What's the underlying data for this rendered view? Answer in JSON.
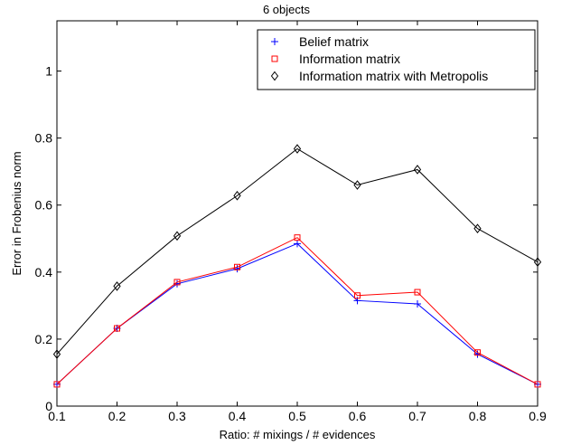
{
  "chart_data": {
    "type": "line",
    "title": "6 objects",
    "xlabel": "Ratio: # mixings / # evidences",
    "ylabel": "Error in Frobenius norm",
    "xlim": [
      0.1,
      0.9
    ],
    "ylim": [
      0,
      1.15
    ],
    "xticks": [
      0.1,
      0.2,
      0.3,
      0.4,
      0.5,
      0.6,
      0.7,
      0.8,
      0.9
    ],
    "xtick_labels": [
      "0.1",
      "0.2",
      "0.3",
      "0.4",
      "0.5",
      "0.6",
      "0.7",
      "0.8",
      "0.9"
    ],
    "yticks": [
      0,
      0.2,
      0.4,
      0.6,
      0.8,
      1
    ],
    "ytick_labels": [
      "0",
      "0.2",
      "0.4",
      "0.6",
      "0.8",
      "1"
    ],
    "grid": false,
    "legend_position": "top-right",
    "x": [
      0.1,
      0.2,
      0.3,
      0.4,
      0.5,
      0.6,
      0.7,
      0.8,
      0.9
    ],
    "series": [
      {
        "name": "Belief matrix",
        "marker": "plus",
        "color": "#0000ff",
        "values": [
          0.065,
          0.232,
          0.365,
          0.41,
          0.485,
          0.315,
          0.305,
          0.155,
          0.065
        ]
      },
      {
        "name": "Information matrix",
        "marker": "square",
        "color": "#ff0000",
        "values": [
          0.065,
          0.232,
          0.37,
          0.415,
          0.503,
          0.33,
          0.34,
          0.16,
          0.065
        ]
      },
      {
        "name": "Information matrix with Metropolis",
        "marker": "diamond",
        "color": "#000000",
        "values": [
          0.155,
          0.358,
          0.508,
          0.628,
          0.768,
          0.66,
          0.706,
          0.53,
          0.43
        ]
      }
    ]
  }
}
